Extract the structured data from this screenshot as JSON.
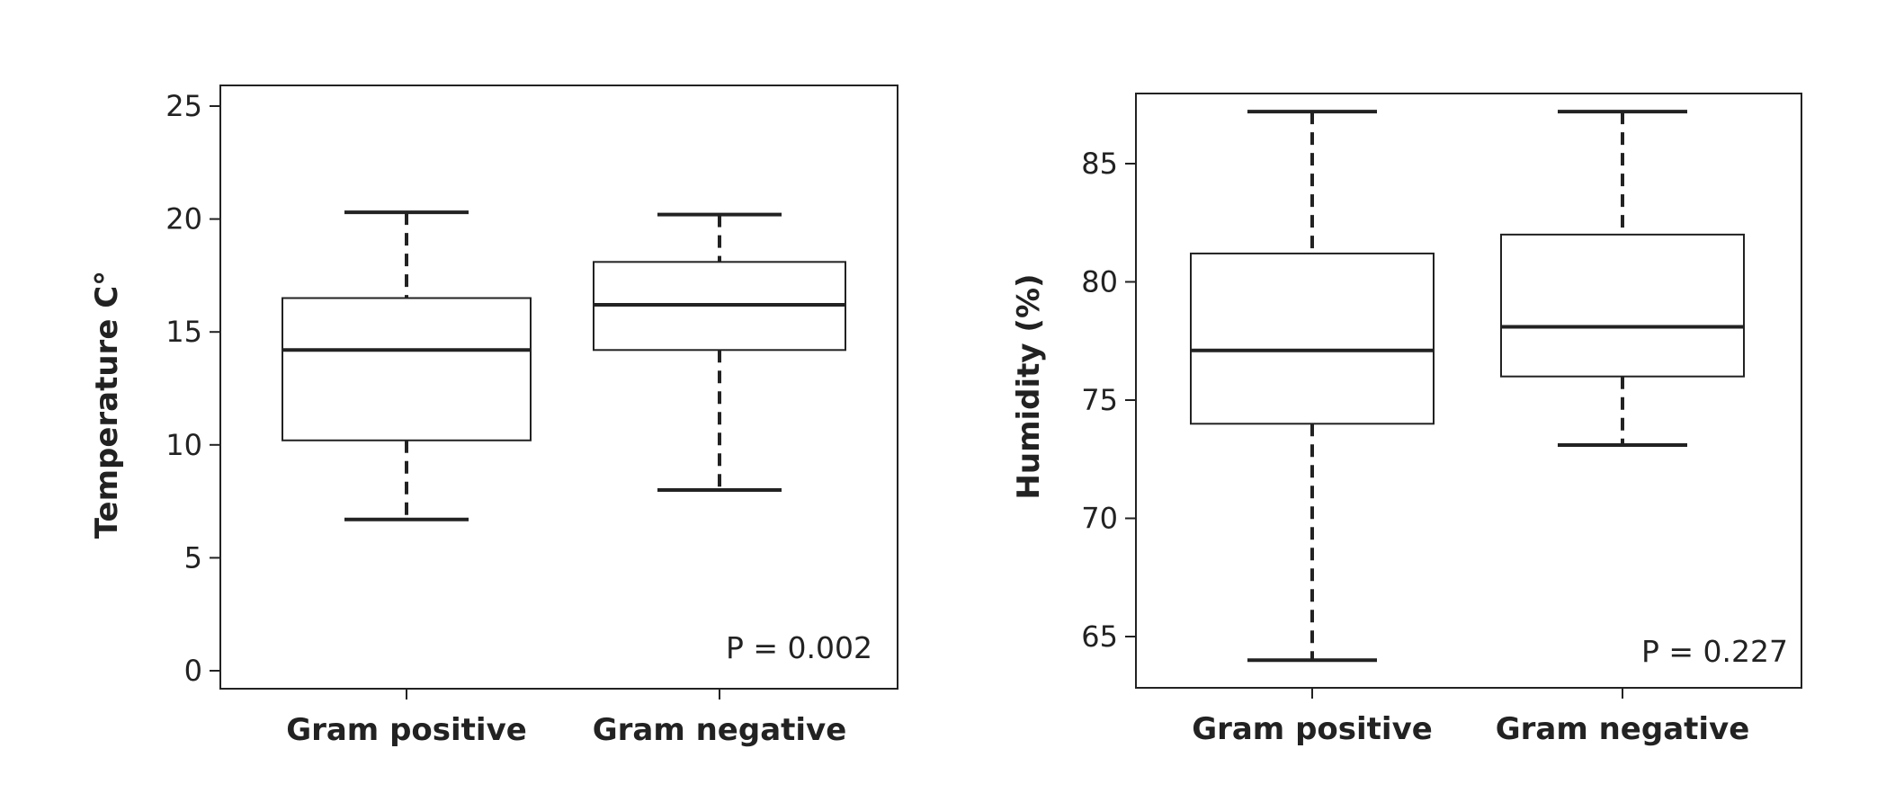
{
  "chart_data": [
    {
      "type": "box",
      "ylabel": "Temperature C°",
      "xlabel": "",
      "ylim": [
        0,
        25
      ],
      "yticks": [
        0,
        5,
        10,
        15,
        20,
        25
      ],
      "categories": [
        "Gram positive",
        "Gram negative"
      ],
      "boxes": [
        {
          "name": "Gram positive",
          "whisker_low": 6.7,
          "q1": 10.2,
          "median": 14.2,
          "q3": 16.5,
          "whisker_high": 20.3
        },
        {
          "name": "Gram negative",
          "whisker_low": 8.0,
          "q1": 14.2,
          "median": 16.2,
          "q3": 18.1,
          "whisker_high": 20.2
        }
      ],
      "annotation": "P = 0.002",
      "grid": false,
      "legend": "none"
    },
    {
      "type": "box",
      "ylabel": "Humidity (%)",
      "xlabel": "",
      "ylim": [
        65,
        85
      ],
      "yticks": [
        65,
        70,
        75,
        80,
        85
      ],
      "categories": [
        "Gram positive",
        "Gram negative"
      ],
      "boxes": [
        {
          "name": "Gram positive",
          "whisker_low": 64.0,
          "q1": 74.0,
          "median": 77.1,
          "q3": 81.2,
          "whisker_high": 87.2
        },
        {
          "name": "Gram negative",
          "whisker_low": 73.1,
          "q1": 76.0,
          "median": 78.1,
          "q3": 82.0,
          "whisker_high": 87.2
        }
      ],
      "annotation": "P = 0.227",
      "grid": false,
      "legend": "none"
    }
  ],
  "colors": {
    "stroke": "#222222",
    "box_fill": "#ffffff"
  }
}
